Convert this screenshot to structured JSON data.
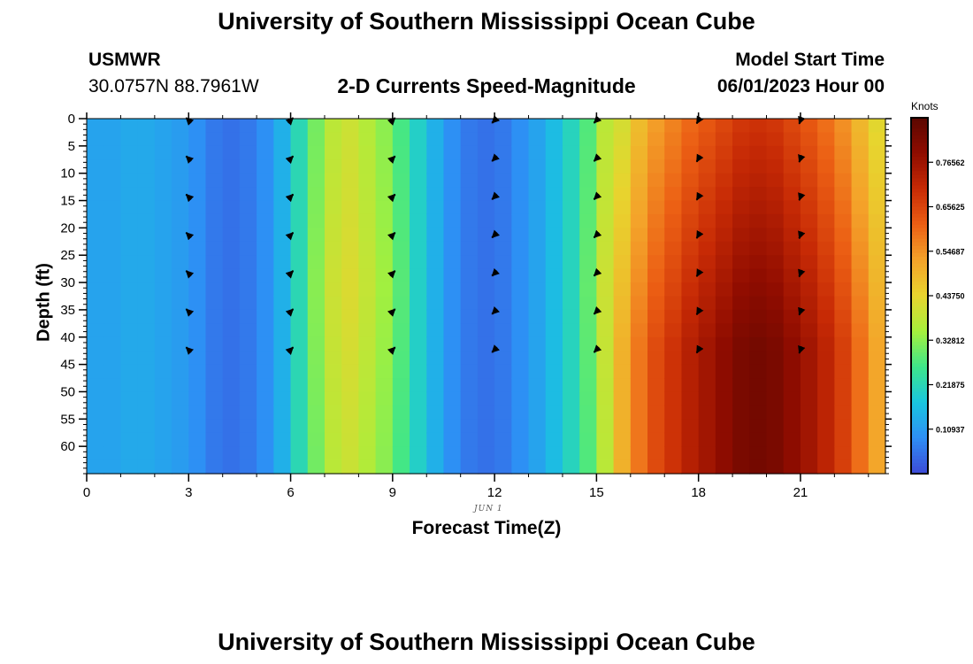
{
  "header": {
    "title": "University of Southern Mississippi Ocean Cube",
    "station_name": "USMWR",
    "coordinates": "30.0757N  88.7961W",
    "model_start_label": "Model Start Time",
    "model_start_value": "06/01/2023 Hour 00"
  },
  "footer": {
    "title_repeat": "University of Southern Mississippi Ocean Cube"
  },
  "chart_data": {
    "type": "heatmap",
    "title": "2-D Currents Speed-Magnitude",
    "xlabel": "Forecast Time(Z)",
    "ylabel": "Depth (ft)",
    "date_label": "JUN 1",
    "xlim": [
      0,
      23.5
    ],
    "ylim": [
      0,
      65
    ],
    "x_ticks": [
      0,
      3,
      6,
      9,
      12,
      15,
      18,
      21
    ],
    "x_tick_labels": [
      "0",
      "3",
      "6",
      "9",
      "12",
      "15",
      "18",
      "21"
    ],
    "y_ticks": [
      0,
      5,
      10,
      15,
      20,
      25,
      30,
      35,
      40,
      45,
      50,
      55,
      60
    ],
    "y_tick_labels": [
      "0",
      "5",
      "10",
      "15",
      "20",
      "25",
      "30",
      "35",
      "40",
      "45",
      "50",
      "55",
      "60"
    ],
    "colorbar": {
      "title": "Knots",
      "range": [
        0.0,
        0.875
      ],
      "ticks": [
        0.109375,
        0.21875,
        0.328125,
        0.4375,
        0.546875,
        0.65625,
        0.765625
      ],
      "tick_labels": [
        "0.10937",
        "0.21875",
        "0.32812",
        "0.43750",
        "0.54687",
        "0.65625",
        "0.76562"
      ],
      "colors": [
        "#3d4bd6",
        "#2e8ef5",
        "#19c6df",
        "#3ee68a",
        "#a6f03c",
        "#e8d42e",
        "#f4a32a",
        "#ec5f14",
        "#c72a05",
        "#8f0c00",
        "#5a0700"
      ]
    },
    "speed_profile": {
      "hours": [
        0,
        0.5,
        1,
        1.5,
        2,
        2.5,
        3,
        3.5,
        4,
        4.5,
        5,
        5.5,
        6,
        6.5,
        7,
        7.5,
        8,
        8.5,
        9,
        9.5,
        10,
        10.5,
        11,
        11.5,
        12,
        12.5,
        13,
        13.5,
        14,
        14.5,
        15,
        15.5,
        16,
        16.5,
        17,
        17.5,
        18,
        18.5,
        19,
        19.5,
        20,
        20.5,
        21,
        21.5,
        22,
        22.5,
        23
      ],
      "speed_knots": [
        0.12,
        0.12,
        0.13,
        0.13,
        0.12,
        0.11,
        0.09,
        0.06,
        0.05,
        0.06,
        0.09,
        0.14,
        0.22,
        0.31,
        0.38,
        0.4,
        0.37,
        0.33,
        0.27,
        0.2,
        0.14,
        0.09,
        0.06,
        0.05,
        0.06,
        0.09,
        0.12,
        0.16,
        0.21,
        0.28,
        0.38,
        0.48,
        0.56,
        0.62,
        0.66,
        0.7,
        0.73,
        0.76,
        0.79,
        0.8,
        0.79,
        0.76,
        0.73,
        0.69,
        0.64,
        0.57,
        0.5
      ]
    },
    "arrows": {
      "hours": [
        3,
        6,
        9,
        12,
        15,
        18,
        21
      ],
      "depths_ft": [
        0,
        7,
        14,
        21,
        28,
        35,
        42
      ],
      "direction_deg": [
        225,
        315,
        315,
        135,
        135,
        120,
        110
      ]
    }
  }
}
